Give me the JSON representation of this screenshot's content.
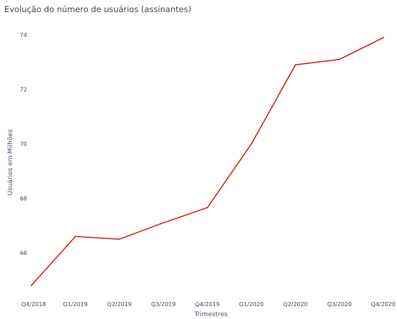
{
  "chart_data": {
    "type": "line",
    "title": "Evolução do número de usuários (assinantes)",
    "xlabel": "Trimestres",
    "ylabel": "Usuários em Milhões",
    "categories": [
      "Q4/2018",
      "Q1/2019",
      "Q2/2019",
      "Q3/2019",
      "Q4/2019",
      "Q1/2020",
      "Q2/2020",
      "Q3/2020",
      "Q4/2020"
    ],
    "series": [
      {
        "values": [
          64.8,
          66.6,
          66.5,
          67.1,
          67.66,
          70.0,
          72.9,
          73.1,
          73.9
        ]
      }
    ],
    "y_ticks": [
      66,
      68,
      70,
      72,
      74
    ],
    "ylim": [
      64.8,
      74.5
    ],
    "grid": false,
    "line_color": "#d40000"
  }
}
